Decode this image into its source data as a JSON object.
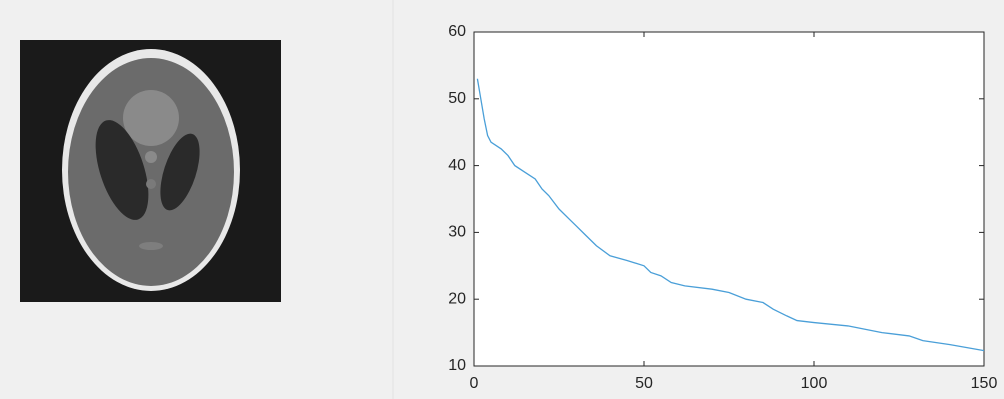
{
  "chart_data": {
    "type": "line",
    "x": [
      1,
      2,
      3,
      4,
      5,
      8,
      10,
      12,
      15,
      18,
      20,
      22,
      25,
      28,
      30,
      33,
      36,
      40,
      45,
      50,
      52,
      55,
      58,
      62,
      70,
      75,
      80,
      85,
      88,
      92,
      95,
      100,
      110,
      120,
      128,
      132,
      140,
      150
    ],
    "values": [
      53,
      50,
      47,
      44.5,
      43.5,
      42.5,
      41.5,
      40,
      39,
      38,
      36.5,
      35.5,
      33.5,
      32,
      31,
      29.5,
      28,
      26.5,
      25.8,
      25,
      24,
      23.5,
      22.5,
      22,
      21.5,
      21,
      20,
      19.5,
      18.5,
      17.5,
      16.8,
      16.5,
      16,
      15,
      14.5,
      13.8,
      13.2,
      12.3
    ],
    "color": "#4a9fd8",
    "xlim": [
      0,
      150
    ],
    "ylim": [
      10,
      60
    ],
    "xticks": [
      0,
      50,
      100,
      150
    ],
    "yticks": [
      10,
      20,
      30,
      40,
      50,
      60
    ]
  }
}
